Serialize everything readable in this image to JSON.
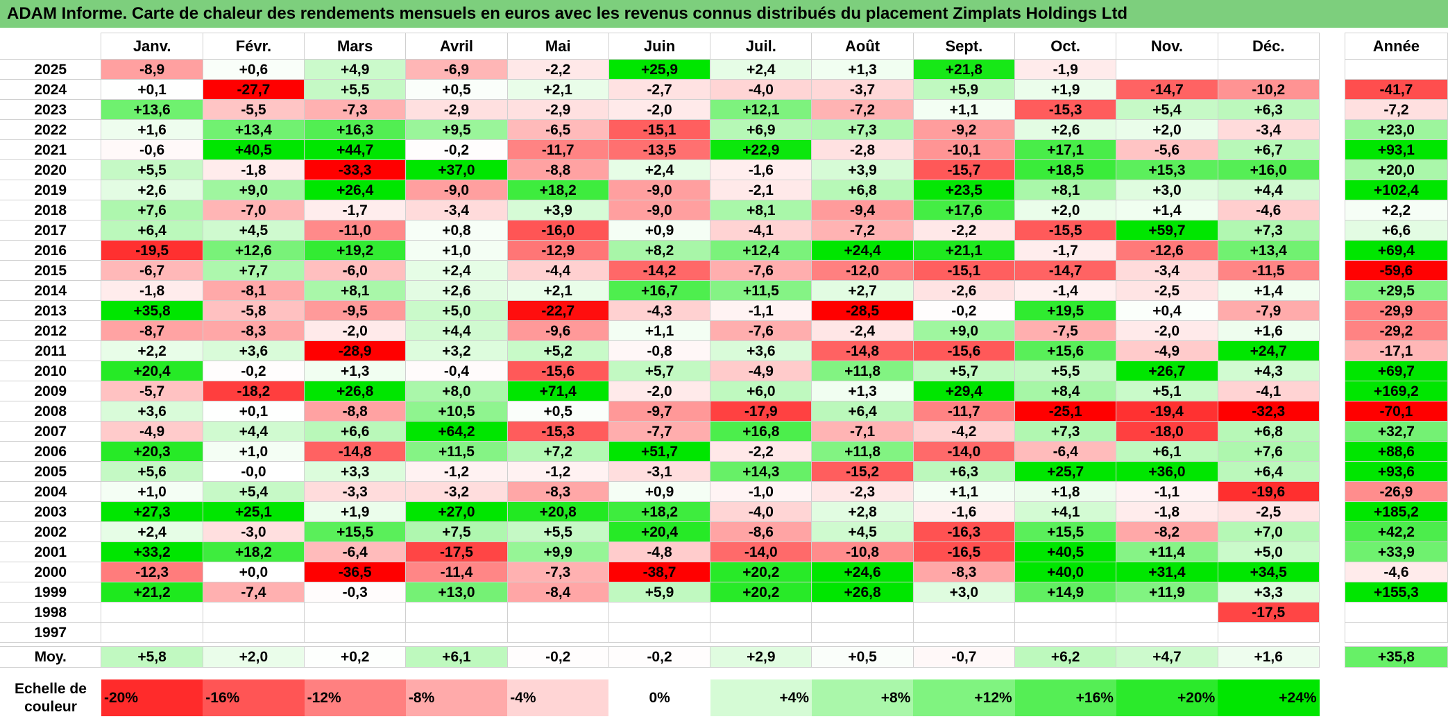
{
  "title": "ADAM Informe. Carte de chaleur des rendements mensuels en euros avec les revenus connus distribués du placement Zimplats Holdings Ltd",
  "chart_data": {
    "type": "heatmap",
    "months": [
      "Janv.",
      "Févr.",
      "Mars",
      "Avril",
      "Mai",
      "Juin",
      "Juil.",
      "Août",
      "Sept.",
      "Oct.",
      "Nov.",
      "Déc."
    ],
    "annual_header": "Année",
    "rows": [
      {
        "year": "2025",
        "values": [
          "-8,9",
          "+0,6",
          "+4,9",
          "-6,9",
          "-2,2",
          "+25,9",
          "+2,4",
          "+1,3",
          "+21,8",
          "-1,9",
          "",
          ""
        ],
        "annual": ""
      },
      {
        "year": "2024",
        "values": [
          "+0,1",
          "-27,7",
          "+5,5",
          "+0,5",
          "+2,1",
          "-2,7",
          "-4,0",
          "-3,7",
          "+5,9",
          "+1,9",
          "-14,7",
          "-10,2"
        ],
        "annual": "-41,7"
      },
      {
        "year": "2023",
        "values": [
          "+13,6",
          "-5,5",
          "-7,3",
          "-2,9",
          "-2,9",
          "-2,0",
          "+12,1",
          "-7,2",
          "+1,1",
          "-15,3",
          "+5,4",
          "+6,3"
        ],
        "annual": "-7,2"
      },
      {
        "year": "2022",
        "values": [
          "+1,6",
          "+13,4",
          "+16,3",
          "+9,5",
          "-6,5",
          "-15,1",
          "+6,9",
          "+7,3",
          "-9,2",
          "+2,6",
          "+2,0",
          "-3,4"
        ],
        "annual": "+23,0"
      },
      {
        "year": "2021",
        "values": [
          "-0,6",
          "+40,5",
          "+44,7",
          "-0,2",
          "-11,7",
          "-13,5",
          "+22,9",
          "-2,8",
          "-10,1",
          "+17,1",
          "-5,6",
          "+6,7"
        ],
        "annual": "+93,1"
      },
      {
        "year": "2020",
        "values": [
          "+5,5",
          "-1,8",
          "-33,3",
          "+37,0",
          "-8,8",
          "+2,4",
          "-1,6",
          "+3,9",
          "-15,7",
          "+18,5",
          "+15,3",
          "+16,0"
        ],
        "annual": "+20,0"
      },
      {
        "year": "2019",
        "values": [
          "+2,6",
          "+9,0",
          "+26,4",
          "-9,0",
          "+18,2",
          "-9,0",
          "-2,1",
          "+6,8",
          "+23,5",
          "+8,1",
          "+3,0",
          "+4,4"
        ],
        "annual": "+102,4"
      },
      {
        "year": "2018",
        "values": [
          "+7,6",
          "-7,0",
          "-1,7",
          "-3,4",
          "+3,9",
          "-9,0",
          "+8,1",
          "-9,4",
          "+17,6",
          "+2,0",
          "+1,4",
          "-4,6"
        ],
        "annual": "+2,2"
      },
      {
        "year": "2017",
        "values": [
          "+6,4",
          "+4,5",
          "-11,0",
          "+0,8",
          "-16,0",
          "+0,9",
          "-4,1",
          "-7,2",
          "-2,2",
          "-15,5",
          "+59,7",
          "+7,3"
        ],
        "annual": "+6,6"
      },
      {
        "year": "2016",
        "values": [
          "-19,5",
          "+12,6",
          "+19,2",
          "+1,0",
          "-12,9",
          "+8,2",
          "+12,4",
          "+24,4",
          "+21,1",
          "-1,7",
          "-12,6",
          "+13,4"
        ],
        "annual": "+69,4"
      },
      {
        "year": "2015",
        "values": [
          "-6,7",
          "+7,7",
          "-6,0",
          "+2,4",
          "-4,4",
          "-14,2",
          "-7,6",
          "-12,0",
          "-15,1",
          "-14,7",
          "-3,4",
          "-11,5"
        ],
        "annual": "-59,6"
      },
      {
        "year": "2014",
        "values": [
          "-1,8",
          "-8,1",
          "+8,1",
          "+2,6",
          "+2,1",
          "+16,7",
          "+11,5",
          "+2,7",
          "-2,6",
          "-1,4",
          "-2,5",
          "+1,4"
        ],
        "annual": "+29,5"
      },
      {
        "year": "2013",
        "values": [
          "+35,8",
          "-5,8",
          "-9,5",
          "+5,0",
          "-22,7",
          "-4,3",
          "-1,1",
          "-28,5",
          "-0,2",
          "+19,5",
          "+0,4",
          "-7,9"
        ],
        "annual": "-29,9"
      },
      {
        "year": "2012",
        "values": [
          "-8,7",
          "-8,3",
          "-2,0",
          "+4,4",
          "-9,6",
          "+1,1",
          "-7,6",
          "-2,4",
          "+9,0",
          "-7,5",
          "-2,0",
          "+1,6"
        ],
        "annual": "-29,2"
      },
      {
        "year": "2011",
        "values": [
          "+2,2",
          "+3,6",
          "-28,9",
          "+3,2",
          "+5,2",
          "-0,8",
          "+3,6",
          "-14,8",
          "-15,6",
          "+15,6",
          "-4,9",
          "+24,7"
        ],
        "annual": "-17,1"
      },
      {
        "year": "2010",
        "values": [
          "+20,4",
          "-0,2",
          "+1,3",
          "-0,4",
          "-15,6",
          "+5,7",
          "-4,9",
          "+11,8",
          "+5,7",
          "+5,5",
          "+26,7",
          "+4,3"
        ],
        "annual": "+69,7"
      },
      {
        "year": "2009",
        "values": [
          "-5,7",
          "-18,2",
          "+26,8",
          "+8,0",
          "+71,4",
          "-2,0",
          "+6,0",
          "+1,3",
          "+29,4",
          "+8,4",
          "+5,1",
          "-4,1"
        ],
        "annual": "+169,2"
      },
      {
        "year": "2008",
        "values": [
          "+3,6",
          "+0,1",
          "-8,8",
          "+10,5",
          "+0,5",
          "-9,7",
          "-17,9",
          "+6,4",
          "-11,7",
          "-25,1",
          "-19,4",
          "-32,3"
        ],
        "annual": "-70,1"
      },
      {
        "year": "2007",
        "values": [
          "-4,9",
          "+4,4",
          "+6,6",
          "+64,2",
          "-15,3",
          "-7,7",
          "+16,8",
          "-7,1",
          "-4,2",
          "+7,3",
          "-18,0",
          "+6,8"
        ],
        "annual": "+32,7"
      },
      {
        "year": "2006",
        "values": [
          "+20,3",
          "+1,0",
          "-14,8",
          "+11,5",
          "+7,2",
          "+51,7",
          "-2,2",
          "+11,8",
          "-14,0",
          "-6,4",
          "+6,1",
          "+7,6"
        ],
        "annual": "+88,6"
      },
      {
        "year": "2005",
        "values": [
          "+5,6",
          "-0,0",
          "+3,3",
          "-1,2",
          "-1,2",
          "-3,1",
          "+14,3",
          "-15,2",
          "+6,3",
          "+25,7",
          "+36,0",
          "+6,4"
        ],
        "annual": "+93,6"
      },
      {
        "year": "2004",
        "values": [
          "+1,0",
          "+5,4",
          "-3,3",
          "-3,2",
          "-8,3",
          "+0,9",
          "-1,0",
          "-2,3",
          "+1,1",
          "+1,8",
          "-1,1",
          "-19,6"
        ],
        "annual": "-26,9"
      },
      {
        "year": "2003",
        "values": [
          "+27,3",
          "+25,1",
          "+1,9",
          "+27,0",
          "+20,8",
          "+18,2",
          "-4,0",
          "+2,8",
          "-1,6",
          "+4,1",
          "-1,8",
          "-2,5"
        ],
        "annual": "+185,2"
      },
      {
        "year": "2002",
        "values": [
          "+2,4",
          "-3,0",
          "+15,5",
          "+7,5",
          "+5,5",
          "+20,4",
          "-8,6",
          "+4,5",
          "-16,3",
          "+15,5",
          "-8,2",
          "+7,0"
        ],
        "annual": "+42,2"
      },
      {
        "year": "2001",
        "values": [
          "+33,2",
          "+18,2",
          "-6,4",
          "-17,5",
          "+9,9",
          "-4,8",
          "-14,0",
          "-10,8",
          "-16,5",
          "+40,5",
          "+11,4",
          "+5,0"
        ],
        "annual": "+33,9"
      },
      {
        "year": "2000",
        "values": [
          "-12,3",
          "+0,0",
          "-36,5",
          "-11,4",
          "-7,3",
          "-38,7",
          "+20,2",
          "+24,6",
          "-8,3",
          "+40,0",
          "+31,4",
          "+34,5"
        ],
        "annual": "-4,6"
      },
      {
        "year": "1999",
        "values": [
          "+21,2",
          "-7,4",
          "-0,3",
          "+13,0",
          "-8,4",
          "+5,9",
          "+20,2",
          "+26,8",
          "+3,0",
          "+14,9",
          "+11,9",
          "+3,3"
        ],
        "annual": "+155,3"
      },
      {
        "year": "1998",
        "values": [
          "",
          "",
          "",
          "",
          "",
          "",
          "",
          "",
          "",
          "",
          "",
          "-17,5"
        ],
        "annual": ""
      },
      {
        "year": "1997",
        "values": [
          "",
          "",
          "",
          "",
          "",
          "",
          "",
          "",
          "",
          "",
          "",
          ""
        ],
        "annual": ""
      }
    ],
    "average": {
      "label": "Moy.",
      "values": [
        "+5,8",
        "+2,0",
        "+0,2",
        "+6,1",
        "-0,2",
        "-0,2",
        "+2,9",
        "+0,5",
        "-0,7",
        "+6,2",
        "+4,7",
        "+1,6"
      ],
      "annual": "+35,8"
    },
    "scale": {
      "label": "Echelle de couleur",
      "stops": [
        "-20%",
        "-16%",
        "-12%",
        "-8%",
        "-4%",
        "0%",
        "+4%",
        "+8%",
        "+12%",
        "+16%",
        "+20%",
        "+24%"
      ]
    },
    "colors": {
      "negative_max": "#ff0000",
      "neutral": "#ffffff",
      "positive_max": "#00e600",
      "title_bg": "#7dcf7d"
    }
  }
}
